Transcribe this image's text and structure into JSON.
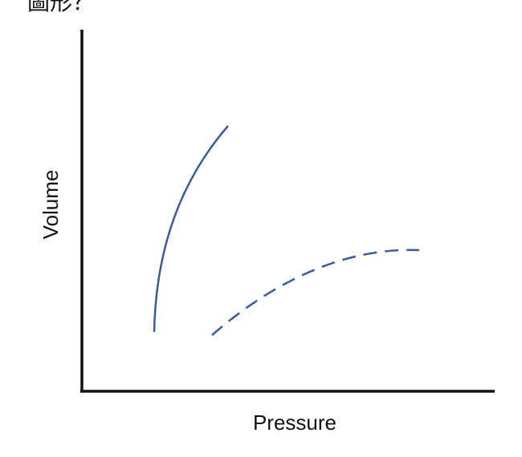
{
  "header": {
    "text": "圖形？"
  },
  "axes": {
    "y_label": "Volume",
    "x_label": "Pressure"
  }
}
